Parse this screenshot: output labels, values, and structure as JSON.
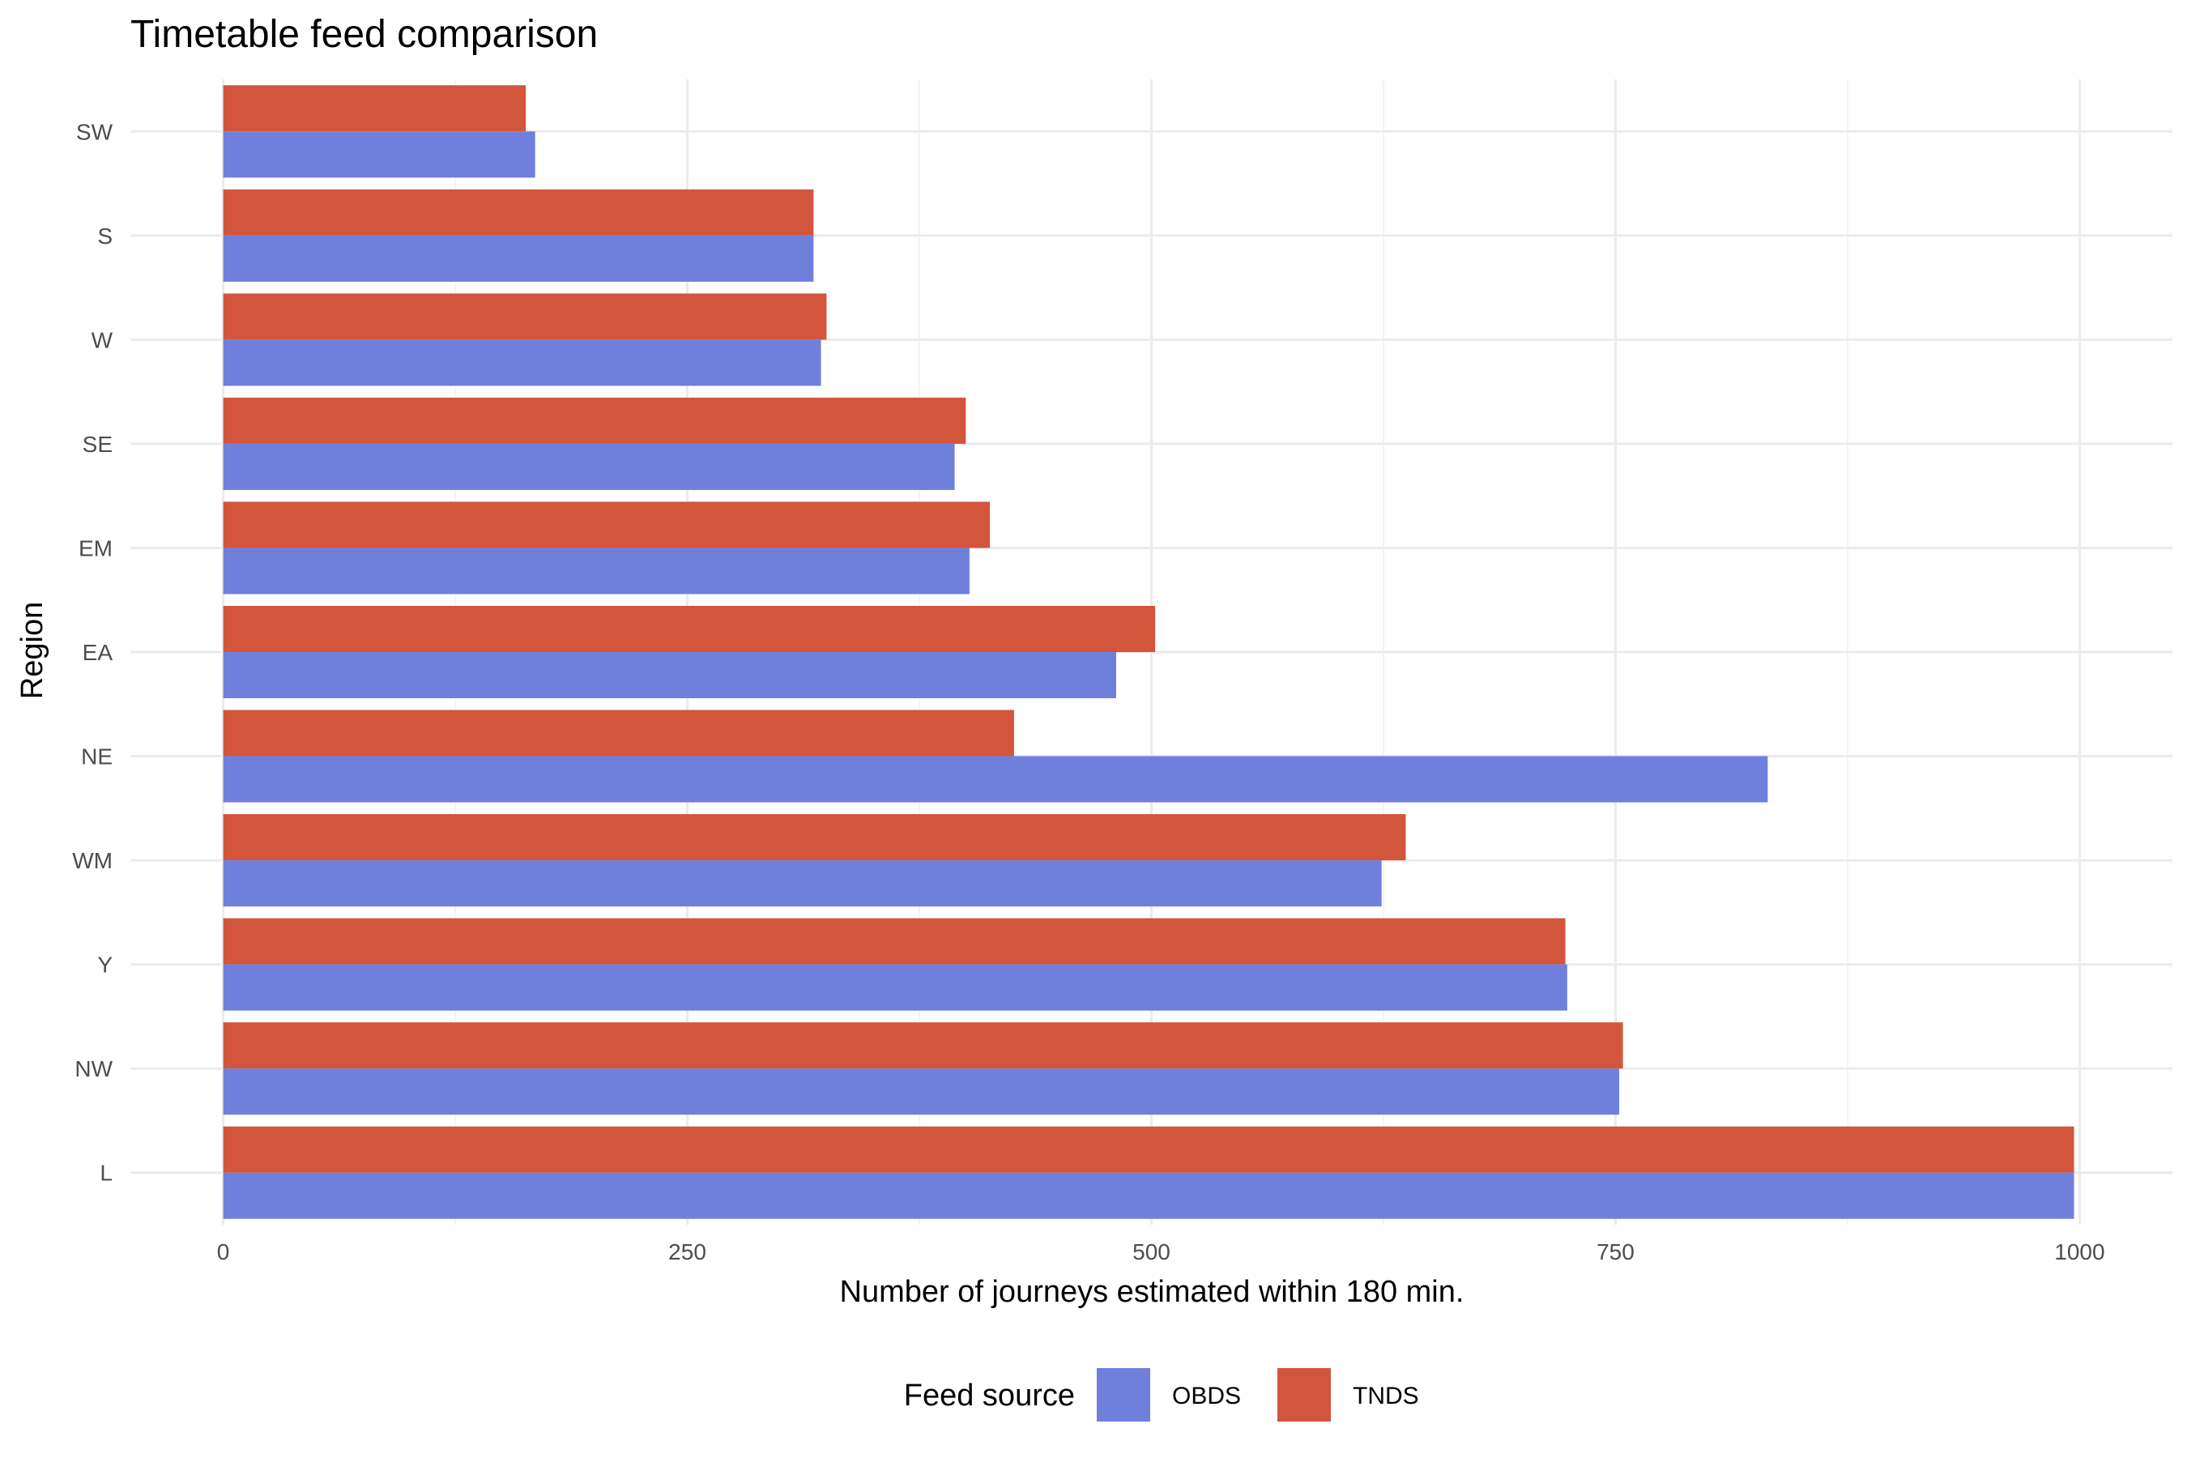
{
  "chart_data": {
    "type": "bar",
    "orientation": "horizontal",
    "title": "Timetable feed comparison",
    "xlabel": "Number of journeys estimated within 180 min.",
    "ylabel": "Region",
    "categories": [
      "SW",
      "S",
      "W",
      "SE",
      "EM",
      "EA",
      "NE",
      "WM",
      "Y",
      "NW",
      "L"
    ],
    "series": [
      {
        "name": "OBDS",
        "color": "#6f80dc",
        "values": [
          168,
          318,
          322,
          394,
          402,
          481,
          832,
          624,
          724,
          752,
          997
        ]
      },
      {
        "name": "TNDS",
        "color": "#d3553b",
        "values": [
          163,
          318,
          325,
          400,
          413,
          502,
          426,
          637,
          723,
          754,
          997
        ]
      }
    ],
    "xlim": [
      -50,
      1050
    ],
    "xticks": [
      0,
      250,
      500,
      750,
      1000
    ],
    "xtick_labels": [
      "0",
      "250",
      "500",
      "750",
      "1000"
    ],
    "grid": true,
    "legend": {
      "title": "Feed source",
      "position": "bottom"
    }
  }
}
